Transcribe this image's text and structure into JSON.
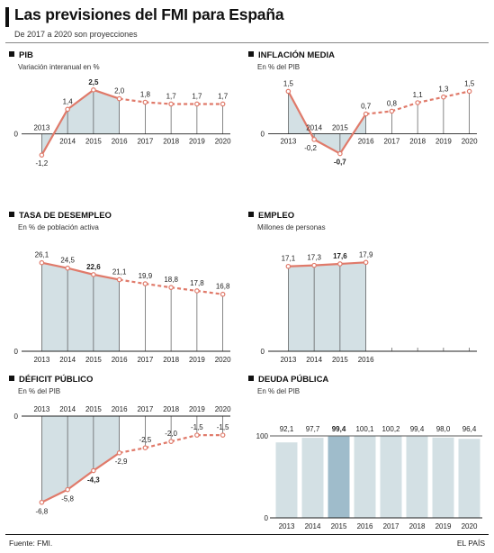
{
  "header": {
    "title": "Las previsiones del FMI para España",
    "subtitle": "De 2017 a 2020 son proyecciones"
  },
  "footer": {
    "source": "Fuente: FMI.",
    "credit": "EL PAÍS"
  },
  "colors": {
    "line": "#e07a6a",
    "fill": "#d3e0e4",
    "grid": "#555555",
    "highlight_bar": "#9fbccb"
  },
  "chart_data": [
    {
      "id": "pib",
      "type": "line",
      "title": "PIB",
      "subtitle": "Variación interanual en %",
      "x": [
        "2013",
        "2014",
        "2015",
        "2016",
        "2017",
        "2018",
        "2019",
        "2020"
      ],
      "values": [
        -1.2,
        1.4,
        2.5,
        2.0,
        1.8,
        1.7,
        1.7,
        1.7
      ],
      "labels": [
        "-1,2",
        "1,4",
        "2,5",
        "2,0",
        "1,8",
        "1,7",
        "1,7",
        "1,7"
      ],
      "bold_index": 2,
      "projection_from_index": 3,
      "shaded_until_index": 3,
      "y_tick_labels": [
        "0"
      ],
      "ylim": [
        -1.6,
        2.9
      ]
    },
    {
      "id": "inflacion",
      "type": "line",
      "title": "INFLACIÓN MEDIA",
      "subtitle": "En % del PIB",
      "x": [
        "2013",
        "2014",
        "2015",
        "2016",
        "2017",
        "2018",
        "2019",
        "2020"
      ],
      "values": [
        1.5,
        -0.2,
        -0.7,
        0.7,
        0.8,
        1.1,
        1.3,
        1.5
      ],
      "labels": [
        "1,5",
        "-0,2",
        "-0,7",
        "0,7",
        "0,8",
        "1,1",
        "1,3",
        "1,5"
      ],
      "bold_index": 2,
      "projection_from_index": 3,
      "shaded_until_index": 3,
      "y_tick_labels": [
        "0"
      ],
      "ylim": [
        -1.0,
        1.8
      ]
    },
    {
      "id": "desempleo",
      "type": "line",
      "title": "TASA DE DESEMPLEO",
      "subtitle": "En % de población activa",
      "x": [
        "2013",
        "2014",
        "2015",
        "2016",
        "2017",
        "2018",
        "2019",
        "2020"
      ],
      "values": [
        26.1,
        24.5,
        22.6,
        21.1,
        19.9,
        18.8,
        17.8,
        16.8
      ],
      "labels": [
        "26,1",
        "24,5",
        "22,6",
        "21,1",
        "19,9",
        "18,8",
        "17,8",
        "16,8"
      ],
      "bold_index": 2,
      "projection_from_index": 3,
      "shaded_until_index": 3,
      "y_tick_labels": [
        "0"
      ],
      "ylim": [
        0,
        30
      ]
    },
    {
      "id": "empleo",
      "type": "line",
      "title": "EMPLEO",
      "subtitle": "Millones de personas",
      "x": [
        "2013",
        "2014",
        "2015",
        "2016"
      ],
      "values": [
        17.1,
        17.3,
        17.6,
        17.9
      ],
      "labels": [
        "17,1",
        "17,3",
        "17,6",
        "17,9"
      ],
      "bold_index": 2,
      "projection_from_index": 4,
      "shaded_until_index": 3,
      "y_tick_labels": [
        "0"
      ],
      "ylim": [
        0,
        20.5
      ],
      "slots": 8
    },
    {
      "id": "deficit",
      "type": "line",
      "title": "DÉFICIT PÚBLICO",
      "subtitle": "En % del PIB",
      "x": [
        "2013",
        "2014",
        "2015",
        "2016",
        "2017",
        "2018",
        "2019",
        "2020"
      ],
      "values": [
        -6.8,
        -5.8,
        -4.3,
        -2.9,
        -2.5,
        -2.0,
        -1.5,
        -1.5
      ],
      "labels": [
        "-6,8",
        "-5,8",
        "-4,3",
        "-2,9",
        "-2,5",
        "-2,0",
        "-1,5",
        "-1,5"
      ],
      "bold_index": 2,
      "projection_from_index": 3,
      "shaded_until_index": 3,
      "y_tick_labels": [
        "0"
      ],
      "ylim": [
        -7.6,
        0
      ],
      "x_labels_top": true
    },
    {
      "id": "deuda",
      "type": "bar",
      "title": "DEUDA PÚBLICA",
      "subtitle": "En % del PIB",
      "x": [
        "2013",
        "2014",
        "2015",
        "2016",
        "2017",
        "2018",
        "2019",
        "2020"
      ],
      "values": [
        92.1,
        97.7,
        99.4,
        100.1,
        100.2,
        99.4,
        98.0,
        96.4
      ],
      "labels": [
        "92,1",
        "97,7",
        "99,4",
        "100,1",
        "100,2",
        "99,4",
        "98,0",
        "96,4"
      ],
      "bold_index": 2,
      "y_tick_labels": [
        "100",
        "0"
      ],
      "ylim": [
        0,
        100
      ]
    }
  ]
}
